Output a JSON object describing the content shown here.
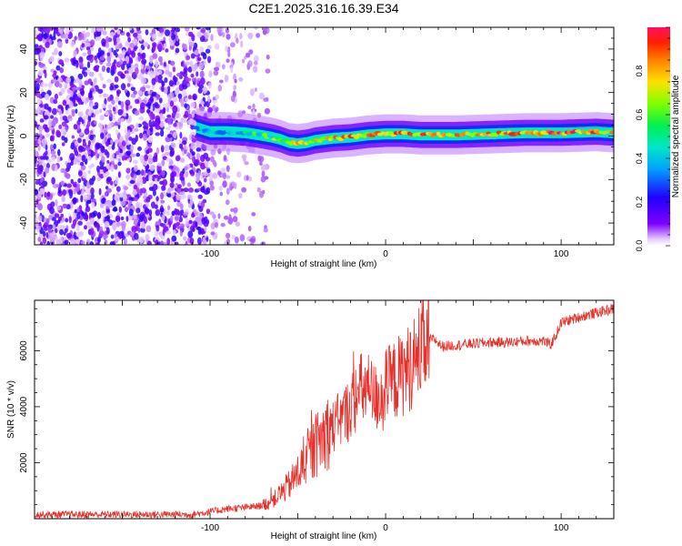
{
  "title": "C2E1.2025.316.16.39.E34",
  "chart_data": [
    {
      "type": "heatmap",
      "name": "spectrogram",
      "title": "C2E1.2025.316.16.39.E34",
      "xlabel": "Height of straight line (km)",
      "ylabel": "Frequency (Hz)",
      "xlim": [
        -200,
        130
      ],
      "ylim": [
        -50,
        50
      ],
      "xticks": [
        -100,
        0,
        100
      ],
      "yticks": [
        -40,
        -20,
        0,
        20,
        40
      ],
      "colorbar": {
        "label": "Normalized spectral amplitude",
        "range": [
          0.0,
          1.0
        ],
        "ticks": [
          0.0,
          0.2,
          0.4,
          0.6,
          0.8
        ]
      },
      "noise_region": {
        "x": [
          -200,
          -67
        ],
        "dense_until": -100
      },
      "ridge": {
        "x": [
          -108,
          -100,
          -90,
          -80,
          -72,
          -65,
          -60,
          -55,
          -50,
          -45,
          -40,
          -30,
          -20,
          -10,
          0,
          10,
          20,
          40,
          60,
          80,
          100,
          120,
          130
        ],
        "freq": [
          4,
          2,
          2,
          1.5,
          0.5,
          -0.5,
          -1.5,
          -3,
          -3.5,
          -3,
          -2,
          -1,
          -0.5,
          0.5,
          1,
          1,
          0.5,
          0.5,
          1,
          1.5,
          1.5,
          2,
          1.5
        ],
        "amplitude": [
          0.3,
          0.35,
          0.4,
          0.45,
          0.5,
          0.55,
          0.65,
          0.7,
          0.75,
          0.7,
          0.7,
          0.75,
          0.85,
          0.75,
          0.8,
          0.85,
          0.8,
          0.75,
          0.8,
          0.85,
          0.9,
          0.8,
          0.75
        ]
      }
    },
    {
      "type": "line",
      "name": "snr",
      "xlabel": "Height of straight line (km)",
      "ylabel": "SNR (10 * v/v)",
      "xlim": [
        -200,
        130
      ],
      "ylim": [
        0,
        7800
      ],
      "xticks": [
        -100,
        0,
        100
      ],
      "yticks": [
        2000,
        4000,
        6000
      ],
      "color": "#e8302a",
      "series": [
        {
          "name": "SNR",
          "x": [
            -200,
            -150,
            -110,
            -100,
            -90,
            -80,
            -72,
            -65,
            -55,
            -48,
            -42,
            -35,
            -28,
            -22,
            -18,
            -14,
            -10,
            -6,
            -2,
            0,
            4,
            8,
            12,
            16,
            20,
            24,
            28,
            32,
            40,
            50,
            60,
            70,
            80,
            90,
            94,
            97,
            100,
            110,
            120,
            130
          ],
          "y": [
            150,
            150,
            150,
            250,
            350,
            400,
            450,
            600,
            1200,
            1800,
            2400,
            3000,
            3400,
            3800,
            4200,
            4600,
            4600,
            4300,
            4500,
            4700,
            4900,
            5100,
            5300,
            5600,
            6000,
            6400,
            6400,
            6150,
            6200,
            6250,
            6300,
            6300,
            6350,
            6350,
            6200,
            6550,
            7000,
            7200,
            7350,
            7500
          ]
        }
      ]
    }
  ]
}
